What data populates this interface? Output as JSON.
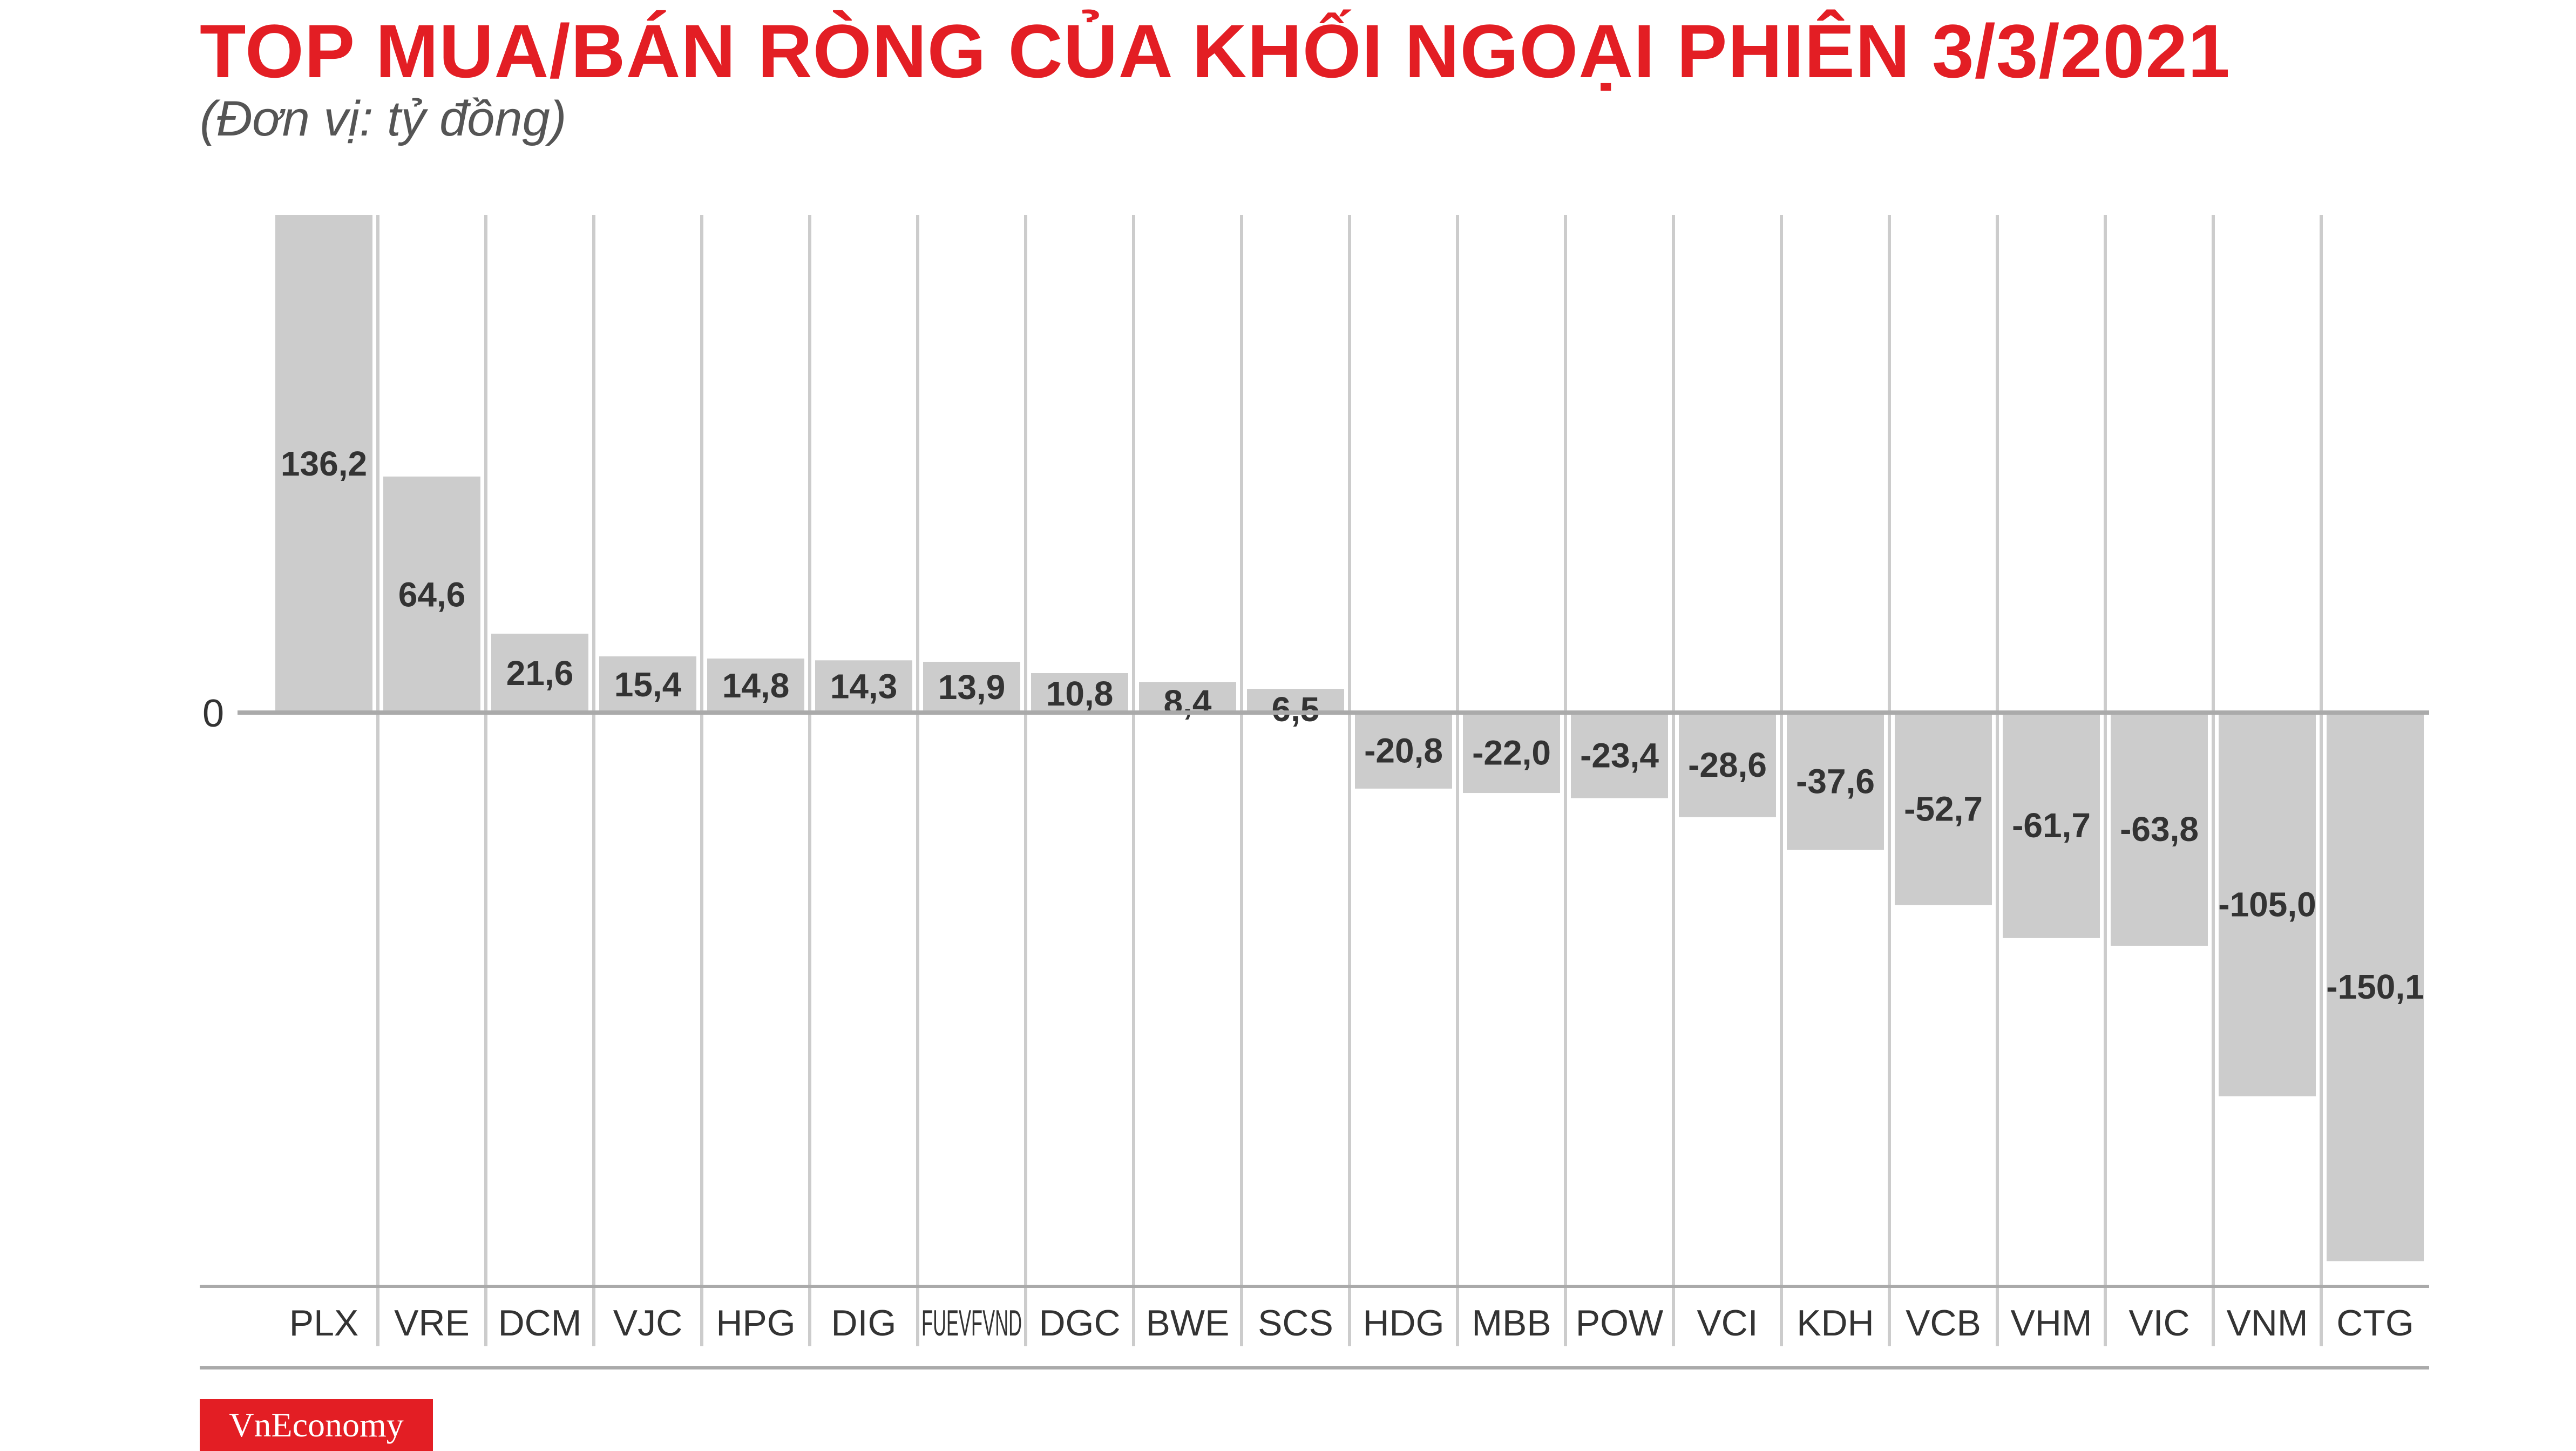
{
  "header": {
    "title": "TOP MUA/BÁN RÒNG CỦA KHỐI NGOẠI PHIÊN 3/3/2021",
    "subtitle": "(Đơn vị: tỷ đồng)"
  },
  "brand": {
    "logo_text": "VnEconomy"
  },
  "colors": {
    "title": "#e31e24",
    "bar": "#cccccc",
    "grid": "#cccccc",
    "axis": "#aaaaaa"
  },
  "chart_data": {
    "type": "bar",
    "categories": [
      "PLX",
      "VRE",
      "DCM",
      "VJC",
      "HPG",
      "DIG",
      "FUEVFVND",
      "DGC",
      "BWE",
      "SCS",
      "HDG",
      "MBB",
      "POW",
      "VCI",
      "KDH",
      "VCB",
      "VHM",
      "VIC",
      "VNM",
      "CTG"
    ],
    "values": [
      136.2,
      64.6,
      21.6,
      15.4,
      14.8,
      14.3,
      13.9,
      10.8,
      8.4,
      6.5,
      -20.8,
      -22.0,
      -23.4,
      -28.6,
      -37.6,
      -52.7,
      -61.7,
      -63.8,
      -105.0,
      -150.1
    ],
    "value_labels": [
      "136,2",
      "64,6",
      "21,6",
      "15,4",
      "14,8",
      "14,3",
      "13,9",
      "10,8",
      "8,4",
      "6,5",
      "-20,8",
      "-22,0",
      "-23,4",
      "-28,6",
      "-37,6",
      "-52,7",
      "-61,7",
      "-63,8",
      "-105,0",
      "-150,1"
    ],
    "zero_label": "0",
    "ylim": [
      -157,
      136.2
    ],
    "title": "TOP MUA/BÁN RÒNG CỦA KHỐI NGOẠI PHIÊN 3/3/2021",
    "xlabel": "",
    "ylabel": "(Đơn vị: tỷ đồng)",
    "grid": true,
    "legend": "none"
  }
}
